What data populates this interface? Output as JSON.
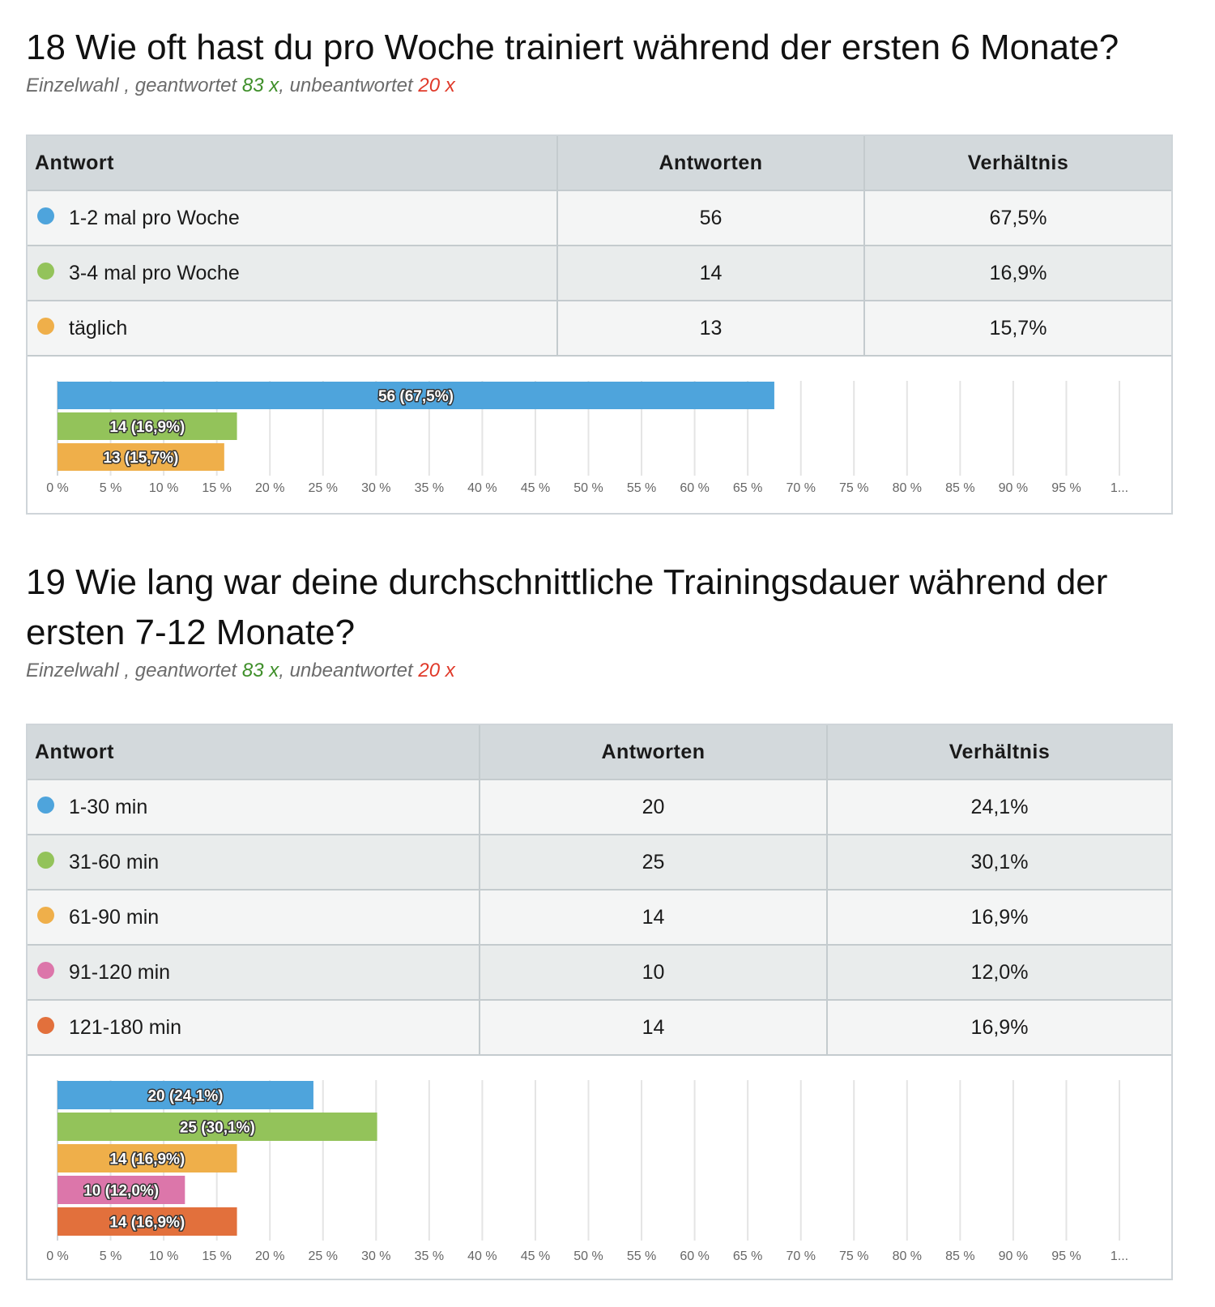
{
  "colors": [
    "#4ea4dc",
    "#93c35a",
    "#efaf4a",
    "#dc76aa",
    "#e2703c"
  ],
  "questions": [
    {
      "title": "18 Wie oft hast du pro Woche trainiert während der ersten 6 Monate?",
      "meta": {
        "type": "Einzelwahl",
        "answered_label": "geantwortet",
        "answered": "83 x",
        "unanswered_label": "unbeantwortet",
        "unanswered": "20 x"
      },
      "table": {
        "headers": [
          "Antwort",
          "Antworten",
          "Verhältnis"
        ],
        "rows": [
          {
            "label": "1-2 mal pro Woche",
            "count": "56",
            "ratio": "67,5%"
          },
          {
            "label": "3-4 mal pro Woche",
            "count": "14",
            "ratio": "16,9%"
          },
          {
            "label": "täglich",
            "count": "13",
            "ratio": "15,7%"
          }
        ]
      }
    },
    {
      "title": "19 Wie lang war deine durchschnittliche Trainingsdauer während der ersten 7-12 Monate?",
      "meta": {
        "type": "Einzelwahl",
        "answered_label": "geantwortet",
        "answered": "83 x",
        "unanswered_label": "unbeantwortet",
        "unanswered": "20 x"
      },
      "table": {
        "headers": [
          "Antwort",
          "Antworten",
          "Verhältnis"
        ],
        "rows": [
          {
            "label": "1-30 min",
            "count": "20",
            "ratio": "24,1%"
          },
          {
            "label": "31-60 min",
            "count": "25",
            "ratio": "30,1%"
          },
          {
            "label": "61-90 min",
            "count": "14",
            "ratio": "16,9%"
          },
          {
            "label": "91-120 min",
            "count": "10",
            "ratio": "12,0%"
          },
          {
            "label": "121-180 min",
            "count": "14",
            "ratio": "16,9%"
          }
        ]
      }
    }
  ],
  "chart_data": [
    {
      "type": "bar",
      "orientation": "horizontal",
      "categories": [
        "1-2 mal pro Woche",
        "3-4 mal pro Woche",
        "täglich"
      ],
      "values": [
        67.5,
        16.9,
        15.7
      ],
      "data_labels": [
        "56 (67,5%)",
        "14 (16,9%)",
        "13 (15,7%)"
      ],
      "xlim": [
        0,
        100
      ],
      "xticks": [
        "0 %",
        "5 %",
        "10 %",
        "15 %",
        "20 %",
        "25 %",
        "30 %",
        "35 %",
        "40 %",
        "45 %",
        "50 %",
        "55 %",
        "60 %",
        "65 %",
        "70 %",
        "75 %",
        "80 %",
        "85 %",
        "90 %",
        "95 %",
        "1..."
      ],
      "grid": true
    },
    {
      "type": "bar",
      "orientation": "horizontal",
      "categories": [
        "1-30 min",
        "31-60 min",
        "61-90 min",
        "91-120 min",
        "121-180 min"
      ],
      "values": [
        24.1,
        30.1,
        16.9,
        12.0,
        16.9
      ],
      "data_labels": [
        "20 (24,1%)",
        "25 (30,1%)",
        "14 (16,9%)",
        "10 (12,0%)",
        "14 (16,9%)"
      ],
      "xlim": [
        0,
        100
      ],
      "xticks": [
        "0 %",
        "5 %",
        "10 %",
        "15 %",
        "20 %",
        "25 %",
        "30 %",
        "35 %",
        "40 %",
        "45 %",
        "50 %",
        "55 %",
        "60 %",
        "65 %",
        "70 %",
        "75 %",
        "80 %",
        "85 %",
        "90 %",
        "95 %",
        "1..."
      ],
      "grid": true
    }
  ]
}
